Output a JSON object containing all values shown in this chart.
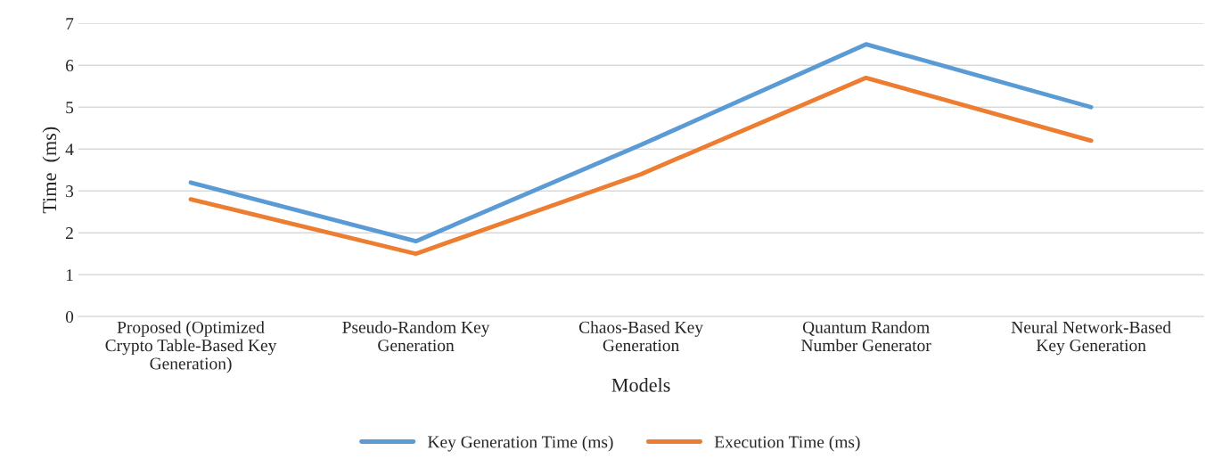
{
  "chart_data": {
    "type": "line",
    "xlabel": "Models",
    "ylabel": "Time  (ms)",
    "categories": [
      "Proposed (Optimized\nCrypto Table-Based Key\nGeneration)",
      "Pseudo-Random Key\nGeneration",
      "Chaos-Based Key\nGeneration",
      "Quantum Random\nNumber Generator",
      "Neural Network-Based\nKey Generation"
    ],
    "series": [
      {
        "name": "Key Generation Time (ms)",
        "color": "#5b9bd5",
        "values": [
          3.2,
          1.8,
          4.1,
          6.5,
          5.0
        ]
      },
      {
        "name": "Execution Time (ms)",
        "color": "#ed7d31",
        "values": [
          2.8,
          1.5,
          3.4,
          5.7,
          4.2
        ]
      }
    ],
    "ylim": [
      0,
      7
    ],
    "yticks": [
      0,
      1,
      2,
      3,
      4,
      5,
      6,
      7
    ],
    "grid": "y",
    "legend": "bottom",
    "marker": "none",
    "line_style": "solid"
  }
}
